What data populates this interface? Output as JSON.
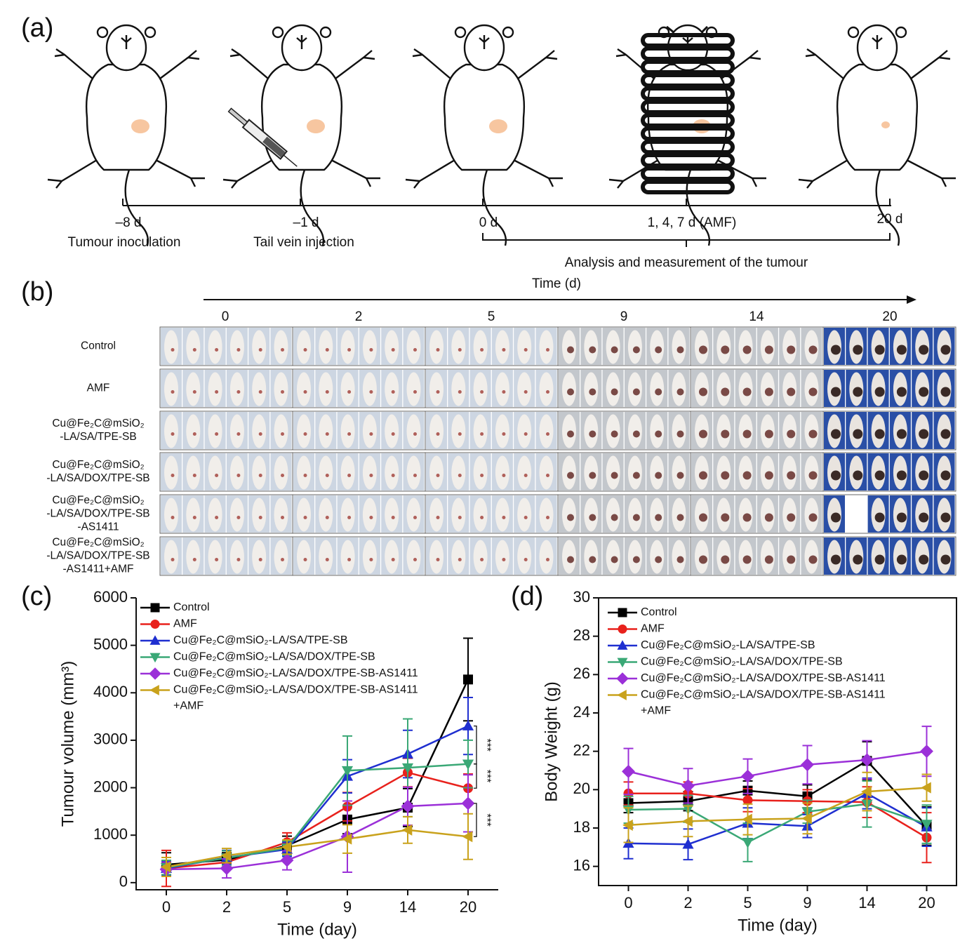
{
  "panel_a": {
    "label": "(a)",
    "timeline": [
      {
        "time": "–8 d",
        "event": "Tumour inoculation"
      },
      {
        "time": "–1 d",
        "event": "Tail vein injection"
      },
      {
        "time": "0 d"
      },
      {
        "time": "1, 4, 7 d (AMF)"
      },
      {
        "time": "20 d"
      }
    ],
    "bracket_label": "Analysis and measurement of the tumour"
  },
  "panel_b": {
    "label": "(b)",
    "axis_label": "Time (d)",
    "columns": [
      "0",
      "2",
      "5",
      "9",
      "14",
      "20"
    ],
    "rows": [
      [
        "Control"
      ],
      [
        "AMF"
      ],
      [
        "Cu@Fe₂C@mSiO₂",
        "-LA/SA/TPE-SB"
      ],
      [
        "Cu@Fe₂C@mSiO₂",
        "-LA/SA/DOX/TPE-SB"
      ],
      [
        "Cu@Fe₂C@mSiO₂",
        "-LA/SA/DOX/TPE-SB",
        "-AS1411"
      ],
      [
        "Cu@Fe₂C@mSiO₂",
        "-LA/SA/DOX/TPE-SB",
        "-AS1411+AMF"
      ]
    ]
  },
  "chart_data": [
    {
      "panel": "(c)",
      "type": "line",
      "x_label": "Time (day)",
      "y_label": "Tumour volume (mm³)",
      "categories": [
        "0",
        "2",
        "5",
        "9",
        "14",
        "20"
      ],
      "ylim": [
        -150,
        6000
      ],
      "yticks": [
        0,
        1000,
        2000,
        3000,
        4000,
        5000,
        6000
      ],
      "annotations": [
        "***",
        "***",
        "***"
      ],
      "series": [
        {
          "name": "Control",
          "color": "#000000",
          "marker": "square",
          "values": [
            380,
            480,
            780,
            1330,
            1580,
            4280
          ],
          "errors": [
            250,
            150,
            200,
            300,
            400,
            870
          ]
        },
        {
          "name": "AMF",
          "color": "#e8211c",
          "marker": "circle",
          "values": [
            300,
            430,
            850,
            1600,
            2320,
            1990
          ],
          "errors": [
            380,
            150,
            200,
            300,
            300,
            300
          ]
        },
        {
          "name": "Cu@Fe₂C@mSiO₂-LA/SA/TPE-SB",
          "color": "#1f2fd0",
          "marker": "triangle-up",
          "values": [
            300,
            530,
            700,
            2240,
            2710,
            3300
          ],
          "errors": [
            150,
            150,
            150,
            350,
            500,
            600
          ]
        },
        {
          "name": "Cu@Fe₂C@mSiO₂-LA/SA/DOX/TPE-SB",
          "color": "#3aa876",
          "marker": "triangle-down",
          "values": [
            320,
            520,
            730,
            2360,
            2420,
            2500
          ],
          "errors": [
            150,
            150,
            150,
            730,
            1030,
            500
          ]
        },
        {
          "name": "Cu@Fe₂C@mSiO₂-LA/SA/DOX/TPE-SB-AS1411",
          "color": "#9b30d8",
          "marker": "diamond",
          "values": [
            280,
            300,
            470,
            970,
            1610,
            1670
          ],
          "errors": [
            150,
            200,
            200,
            750,
            400,
            600
          ]
        },
        {
          "name": "Cu@Fe₂C@mSiO₂-LA/SA/DOX/TPE-SB-AS1411+AMF",
          "color": "#c9a21c",
          "marker": "triangle-left",
          "values": [
            330,
            570,
            750,
            920,
            1110,
            970
          ],
          "errors": [
            200,
            150,
            150,
            300,
            280,
            480
          ]
        }
      ]
    },
    {
      "panel": "(d)",
      "type": "line",
      "x_label": "Time (day)",
      "y_label": "Body Weight (g)",
      "categories": [
        "0",
        "2",
        "5",
        "9",
        "14",
        "20"
      ],
      "ylim": [
        15,
        30
      ],
      "yticks": [
        16,
        18,
        20,
        22,
        24,
        26,
        28,
        30
      ],
      "series": [
        {
          "name": "Control",
          "color": "#000000",
          "marker": "square",
          "values": [
            19.3,
            19.4,
            19.95,
            19.65,
            21.5,
            18.1
          ],
          "errors": [
            0.5,
            0.5,
            0.5,
            0.6,
            1.0,
            1.0
          ]
        },
        {
          "name": "AMF",
          "color": "#e8211c",
          "marker": "circle",
          "values": [
            19.8,
            19.8,
            19.45,
            19.4,
            19.35,
            17.5
          ],
          "errors": [
            0.6,
            0.6,
            0.6,
            0.6,
            0.8,
            1.3
          ]
        },
        {
          "name": "Cu@Fe₂C@mSiO₂-LA/SA/TPE-SB",
          "color": "#1f2fd0",
          "marker": "triangle-up",
          "values": [
            17.2,
            17.15,
            18.25,
            18.1,
            19.8,
            18.05
          ],
          "errors": [
            0.8,
            0.8,
            0.8,
            0.6,
            0.8,
            1.0
          ]
        },
        {
          "name": "Cu@Fe₂C@mSiO₂-LA/SA/DOX/TPE-SB",
          "color": "#3aa876",
          "marker": "triangle-down",
          "values": [
            18.95,
            19.0,
            17.25,
            18.85,
            19.25,
            18.2
          ],
          "errors": [
            0.7,
            0.7,
            1.0,
            0.6,
            1.2,
            1.0
          ]
        },
        {
          "name": "Cu@Fe₂C@mSiO₂-LA/SA/DOX/TPE-SB-AS1411",
          "color": "#9b30d8",
          "marker": "diamond",
          "values": [
            20.95,
            20.2,
            20.7,
            21.3,
            21.55,
            22.0
          ],
          "errors": [
            1.2,
            0.9,
            0.9,
            1.0,
            1.0,
            1.3
          ]
        },
        {
          "name": "Cu@Fe₂C@mSiO₂-LA/SA/DOX/TPE-SB-AS1411+AMF",
          "color": "#c9a21c",
          "marker": "triangle-left",
          "values": [
            18.15,
            18.35,
            18.45,
            18.5,
            19.9,
            20.1
          ],
          "errors": [
            0.9,
            0.8,
            0.8,
            0.8,
            1.0,
            0.7
          ]
        }
      ]
    }
  ]
}
